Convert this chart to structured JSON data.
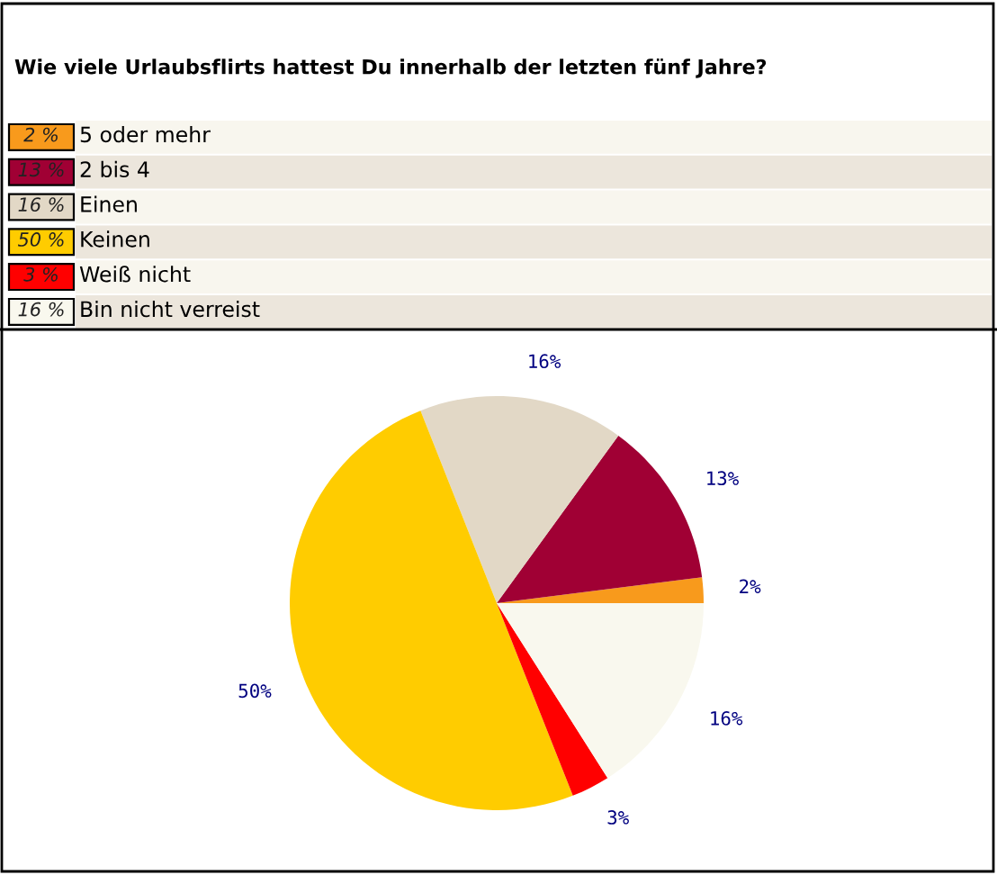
{
  "chart_data": {
    "type": "pie",
    "title": "Wie viele Urlaubsflirts hattest Du innerhalb der letzten fünf Jahre?",
    "categories": [
      "5 oder mehr",
      "2 bis 4",
      "Einen",
      "Keinen",
      "Weiß nicht",
      "Bin nicht verreist"
    ],
    "values": [
      2,
      13,
      16,
      50,
      3,
      16
    ],
    "colors": [
      "#f89a1c",
      "#a00034",
      "#e2d8c6",
      "#ffcc00",
      "#ff0000",
      "#f9f8ee"
    ],
    "value_labels": [
      "2%",
      "13%",
      "16%",
      "50%",
      "3%",
      "16%"
    ],
    "annotations": [
      "2 %",
      "13 %",
      "16 %",
      "50 %",
      "3 %",
      "16 %"
    ],
    "legend": "top"
  }
}
